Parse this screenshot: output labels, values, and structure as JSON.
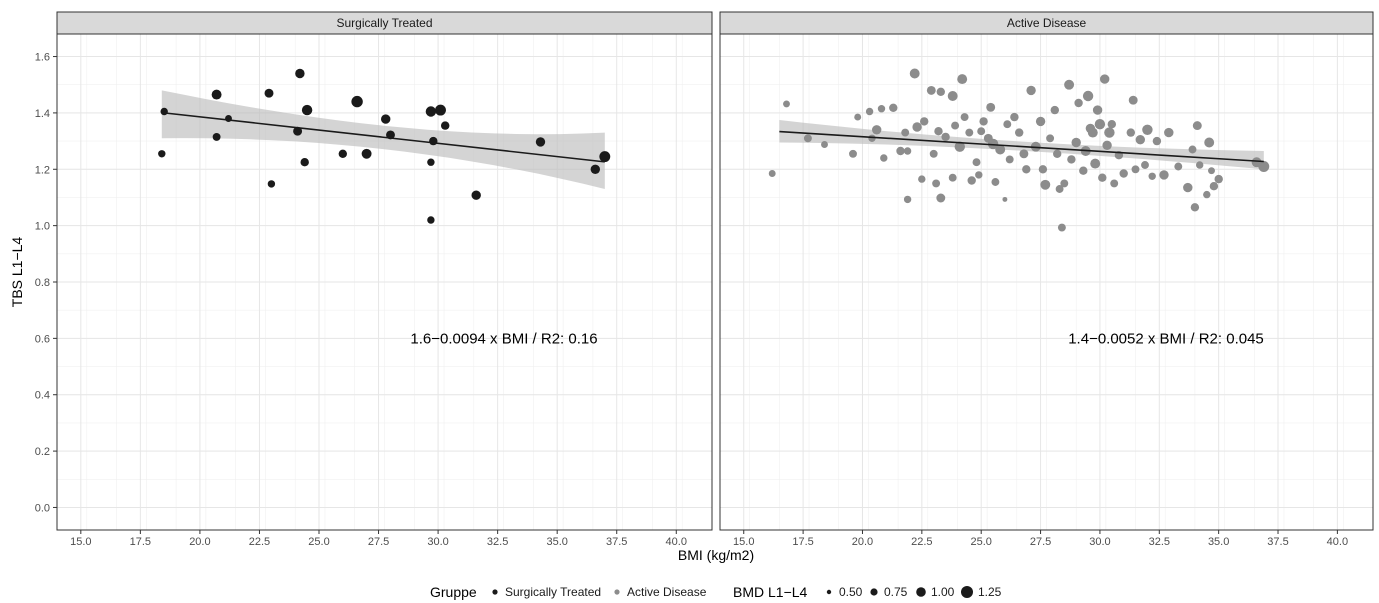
{
  "chart_data": {
    "type": "scatter",
    "xlabel": "BMI (kg/m2)",
    "ylabel": "TBS L1−L4",
    "xlim": [
      14.0,
      41.5
    ],
    "ylim": [
      -0.08,
      1.68
    ],
    "x_ticks": [
      "15.0",
      "17.5",
      "20.0",
      "22.5",
      "25.0",
      "27.5",
      "30.0",
      "32.5",
      "35.0",
      "37.5",
      "40.0"
    ],
    "x_tick_values": [
      15.0,
      17.5,
      20.0,
      22.5,
      25.0,
      27.5,
      30.0,
      32.5,
      35.0,
      37.5,
      40.0
    ],
    "y_ticks": [
      "0.0",
      "0.2",
      "0.4",
      "0.6",
      "0.8",
      "1.0",
      "1.2",
      "1.4",
      "1.6"
    ],
    "y_tick_values": [
      0.0,
      0.2,
      0.4,
      0.6,
      0.8,
      1.0,
      1.2,
      1.4,
      1.6
    ],
    "grid": true,
    "legend_placement": "bottom",
    "legend": {
      "color_title": "Gruppe",
      "color_items": [
        {
          "label": "Surgically Treated",
          "color": "#1a1a1a"
        },
        {
          "label": "Active Disease",
          "color": "#8c8c8c"
        }
      ],
      "size_title": "BMD L1−L4",
      "size_items": [
        {
          "label": "0.50",
          "value": 0.5
        },
        {
          "label": "0.75",
          "value": 0.75
        },
        {
          "label": "1.00",
          "value": 1.0
        },
        {
          "label": "1.25",
          "value": 1.25
        }
      ]
    },
    "panels": [
      {
        "name": "Surgically Treated",
        "color": "#1a1a1a",
        "equation": "1.6−0.0094 x BMI / R2: 0.16",
        "fit": {
          "intercept": 1.574,
          "slope": -0.0094,
          "x_range": [
            18.4,
            37.0
          ]
        },
        "ci": {
          "lower": [
            1.31,
            1.13
          ],
          "upper": [
            1.48,
            1.33
          ]
        },
        "points": [
          {
            "x": 18.5,
            "y": 1.405,
            "bmd": 0.8
          },
          {
            "x": 18.4,
            "y": 1.255,
            "bmd": 0.8
          },
          {
            "x": 20.7,
            "y": 1.465,
            "bmd": 1.05
          },
          {
            "x": 20.7,
            "y": 1.315,
            "bmd": 0.85
          },
          {
            "x": 21.2,
            "y": 1.38,
            "bmd": 0.75
          },
          {
            "x": 22.9,
            "y": 1.47,
            "bmd": 0.95
          },
          {
            "x": 23.0,
            "y": 1.148,
            "bmd": 0.8
          },
          {
            "x": 24.1,
            "y": 1.335,
            "bmd": 0.95
          },
          {
            "x": 24.2,
            "y": 1.54,
            "bmd": 1.0
          },
          {
            "x": 24.5,
            "y": 1.41,
            "bmd": 1.1
          },
          {
            "x": 24.4,
            "y": 1.225,
            "bmd": 0.9
          },
          {
            "x": 26.0,
            "y": 1.255,
            "bmd": 0.9
          },
          {
            "x": 26.6,
            "y": 1.44,
            "bmd": 1.2
          },
          {
            "x": 27.0,
            "y": 1.255,
            "bmd": 1.05
          },
          {
            "x": 27.8,
            "y": 1.378,
            "bmd": 1.0
          },
          {
            "x": 28.0,
            "y": 1.322,
            "bmd": 0.95
          },
          {
            "x": 29.7,
            "y": 1.405,
            "bmd": 1.1
          },
          {
            "x": 29.7,
            "y": 1.02,
            "bmd": 0.8
          },
          {
            "x": 29.7,
            "y": 1.225,
            "bmd": 0.8
          },
          {
            "x": 29.8,
            "y": 1.3,
            "bmd": 0.9
          },
          {
            "x": 30.1,
            "y": 1.41,
            "bmd": 1.15
          },
          {
            "x": 30.3,
            "y": 1.355,
            "bmd": 0.9
          },
          {
            "x": 31.6,
            "y": 1.108,
            "bmd": 1.0
          },
          {
            "x": 34.3,
            "y": 1.297,
            "bmd": 1.0
          },
          {
            "x": 36.6,
            "y": 1.2,
            "bmd": 1.0
          },
          {
            "x": 37.0,
            "y": 1.245,
            "bmd": 1.15
          }
        ]
      },
      {
        "name": "Active Disease",
        "color": "#8c8c8c",
        "equation": "1.4−0.0052 x BMI / R2: 0.045",
        "fit": {
          "intercept": 1.4195,
          "slope": -0.0052,
          "x_range": [
            16.5,
            36.9
          ]
        },
        "ci": {
          "lower": [
            1.295,
            1.2
          ],
          "upper": [
            1.375,
            1.265
          ]
        },
        "points": [
          {
            "x": 16.2,
            "y": 1.185,
            "bmd": 0.75
          },
          {
            "x": 16.8,
            "y": 1.432,
            "bmd": 0.75
          },
          {
            "x": 17.7,
            "y": 1.31,
            "bmd": 0.85
          },
          {
            "x": 18.4,
            "y": 1.288,
            "bmd": 0.75
          },
          {
            "x": 19.6,
            "y": 1.255,
            "bmd": 0.85
          },
          {
            "x": 19.8,
            "y": 1.385,
            "bmd": 0.75
          },
          {
            "x": 20.3,
            "y": 1.405,
            "bmd": 0.8
          },
          {
            "x": 20.4,
            "y": 1.31,
            "bmd": 0.8
          },
          {
            "x": 20.6,
            "y": 1.34,
            "bmd": 1.0
          },
          {
            "x": 20.8,
            "y": 1.415,
            "bmd": 0.8
          },
          {
            "x": 20.9,
            "y": 1.24,
            "bmd": 0.8
          },
          {
            "x": 21.3,
            "y": 1.418,
            "bmd": 0.9
          },
          {
            "x": 21.6,
            "y": 1.265,
            "bmd": 0.9
          },
          {
            "x": 21.8,
            "y": 1.33,
            "bmd": 0.85
          },
          {
            "x": 21.9,
            "y": 1.093,
            "bmd": 0.8
          },
          {
            "x": 21.9,
            "y": 1.265,
            "bmd": 0.8
          },
          {
            "x": 22.2,
            "y": 1.54,
            "bmd": 1.05
          },
          {
            "x": 22.3,
            "y": 1.35,
            "bmd": 1.0
          },
          {
            "x": 22.5,
            "y": 1.165,
            "bmd": 0.8
          },
          {
            "x": 22.6,
            "y": 1.37,
            "bmd": 0.9
          },
          {
            "x": 22.9,
            "y": 1.48,
            "bmd": 0.95
          },
          {
            "x": 23.0,
            "y": 1.255,
            "bmd": 0.85
          },
          {
            "x": 23.1,
            "y": 1.15,
            "bmd": 0.85
          },
          {
            "x": 23.2,
            "y": 1.335,
            "bmd": 0.9
          },
          {
            "x": 23.3,
            "y": 1.098,
            "bmd": 0.95
          },
          {
            "x": 23.3,
            "y": 1.475,
            "bmd": 0.9
          },
          {
            "x": 23.5,
            "y": 1.315,
            "bmd": 0.9
          },
          {
            "x": 23.8,
            "y": 1.46,
            "bmd": 1.05
          },
          {
            "x": 23.8,
            "y": 1.17,
            "bmd": 0.85
          },
          {
            "x": 23.9,
            "y": 1.355,
            "bmd": 0.85
          },
          {
            "x": 24.1,
            "y": 1.28,
            "bmd": 1.1
          },
          {
            "x": 24.2,
            "y": 1.52,
            "bmd": 1.05
          },
          {
            "x": 24.3,
            "y": 1.385,
            "bmd": 0.85
          },
          {
            "x": 24.5,
            "y": 1.33,
            "bmd": 0.85
          },
          {
            "x": 24.6,
            "y": 1.16,
            "bmd": 0.9
          },
          {
            "x": 24.8,
            "y": 1.225,
            "bmd": 0.85
          },
          {
            "x": 24.9,
            "y": 1.18,
            "bmd": 0.8
          },
          {
            "x": 25.0,
            "y": 1.335,
            "bmd": 0.85
          },
          {
            "x": 25.1,
            "y": 1.37,
            "bmd": 0.9
          },
          {
            "x": 25.3,
            "y": 1.31,
            "bmd": 0.95
          },
          {
            "x": 25.4,
            "y": 1.42,
            "bmd": 0.95
          },
          {
            "x": 25.5,
            "y": 1.29,
            "bmd": 1.1
          },
          {
            "x": 25.6,
            "y": 1.155,
            "bmd": 0.85
          },
          {
            "x": 25.8,
            "y": 1.27,
            "bmd": 1.05
          },
          {
            "x": 26.0,
            "y": 1.093,
            "bmd": 0.55
          },
          {
            "x": 26.1,
            "y": 1.36,
            "bmd": 0.85
          },
          {
            "x": 26.2,
            "y": 1.235,
            "bmd": 0.85
          },
          {
            "x": 26.4,
            "y": 1.385,
            "bmd": 0.9
          },
          {
            "x": 26.6,
            "y": 1.33,
            "bmd": 0.9
          },
          {
            "x": 26.8,
            "y": 1.255,
            "bmd": 0.95
          },
          {
            "x": 26.9,
            "y": 1.2,
            "bmd": 0.9
          },
          {
            "x": 27.1,
            "y": 1.48,
            "bmd": 1.0
          },
          {
            "x": 27.3,
            "y": 1.28,
            "bmd": 1.05
          },
          {
            "x": 27.5,
            "y": 1.37,
            "bmd": 1.0
          },
          {
            "x": 27.6,
            "y": 1.2,
            "bmd": 0.9
          },
          {
            "x": 27.7,
            "y": 1.145,
            "bmd": 1.05
          },
          {
            "x": 27.9,
            "y": 1.31,
            "bmd": 0.85
          },
          {
            "x": 28.1,
            "y": 1.41,
            "bmd": 0.9
          },
          {
            "x": 28.2,
            "y": 1.255,
            "bmd": 0.9
          },
          {
            "x": 28.3,
            "y": 1.13,
            "bmd": 0.85
          },
          {
            "x": 28.4,
            "y": 0.993,
            "bmd": 0.85
          },
          {
            "x": 28.5,
            "y": 1.15,
            "bmd": 0.85
          },
          {
            "x": 28.7,
            "y": 1.5,
            "bmd": 1.05
          },
          {
            "x": 28.8,
            "y": 1.235,
            "bmd": 0.9
          },
          {
            "x": 29.0,
            "y": 1.295,
            "bmd": 1.0
          },
          {
            "x": 29.1,
            "y": 1.435,
            "bmd": 0.9
          },
          {
            "x": 29.3,
            "y": 1.195,
            "bmd": 0.9
          },
          {
            "x": 29.4,
            "y": 1.265,
            "bmd": 1.05
          },
          {
            "x": 29.5,
            "y": 1.46,
            "bmd": 1.1
          },
          {
            "x": 29.6,
            "y": 1.345,
            "bmd": 1.0
          },
          {
            "x": 29.7,
            "y": 1.33,
            "bmd": 1.05
          },
          {
            "x": 29.8,
            "y": 1.22,
            "bmd": 1.05
          },
          {
            "x": 29.9,
            "y": 1.41,
            "bmd": 1.0
          },
          {
            "x": 30.0,
            "y": 1.36,
            "bmd": 1.1
          },
          {
            "x": 30.1,
            "y": 1.17,
            "bmd": 0.9
          },
          {
            "x": 30.2,
            "y": 1.52,
            "bmd": 1.0
          },
          {
            "x": 30.3,
            "y": 1.285,
            "bmd": 1.0
          },
          {
            "x": 30.4,
            "y": 1.33,
            "bmd": 1.1
          },
          {
            "x": 30.5,
            "y": 1.36,
            "bmd": 0.9
          },
          {
            "x": 30.6,
            "y": 1.15,
            "bmd": 0.85
          },
          {
            "x": 30.8,
            "y": 1.25,
            "bmd": 0.9
          },
          {
            "x": 31.0,
            "y": 1.185,
            "bmd": 0.9
          },
          {
            "x": 31.3,
            "y": 1.33,
            "bmd": 0.9
          },
          {
            "x": 31.4,
            "y": 1.445,
            "bmd": 0.95
          },
          {
            "x": 31.5,
            "y": 1.2,
            "bmd": 0.85
          },
          {
            "x": 31.7,
            "y": 1.305,
            "bmd": 1.0
          },
          {
            "x": 31.9,
            "y": 1.215,
            "bmd": 0.85
          },
          {
            "x": 32.0,
            "y": 1.34,
            "bmd": 1.1
          },
          {
            "x": 32.2,
            "y": 1.175,
            "bmd": 0.8
          },
          {
            "x": 32.4,
            "y": 1.3,
            "bmd": 0.9
          },
          {
            "x": 32.7,
            "y": 1.18,
            "bmd": 1.0
          },
          {
            "x": 32.9,
            "y": 1.33,
            "bmd": 1.0
          },
          {
            "x": 33.3,
            "y": 1.21,
            "bmd": 0.85
          },
          {
            "x": 33.7,
            "y": 1.135,
            "bmd": 1.0
          },
          {
            "x": 33.9,
            "y": 1.27,
            "bmd": 0.85
          },
          {
            "x": 34.0,
            "y": 1.065,
            "bmd": 0.9
          },
          {
            "x": 34.1,
            "y": 1.355,
            "bmd": 0.95
          },
          {
            "x": 34.2,
            "y": 1.215,
            "bmd": 0.8
          },
          {
            "x": 34.5,
            "y": 1.11,
            "bmd": 0.8
          },
          {
            "x": 34.6,
            "y": 1.295,
            "bmd": 1.05
          },
          {
            "x": 34.8,
            "y": 1.14,
            "bmd": 0.9
          },
          {
            "x": 35.0,
            "y": 1.165,
            "bmd": 0.9
          },
          {
            "x": 34.7,
            "y": 1.195,
            "bmd": 0.75
          },
          {
            "x": 36.6,
            "y": 1.225,
            "bmd": 1.05
          },
          {
            "x": 36.9,
            "y": 1.21,
            "bmd": 1.15
          }
        ]
      }
    ]
  }
}
